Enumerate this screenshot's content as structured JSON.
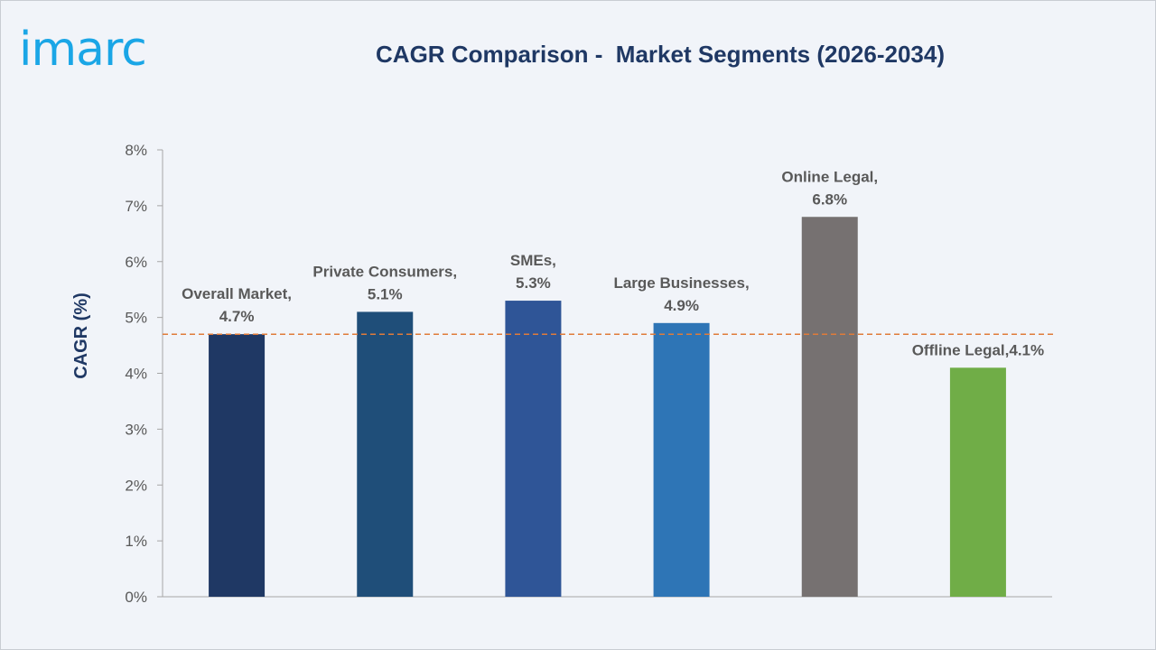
{
  "header": {
    "logo_text": "imarc",
    "title": "CAGR Comparison -  Market Segments (2026-2034)"
  },
  "colors": {
    "background": "#f1f4f9",
    "axis": "#a6a6a6",
    "reference_line": "#e07b39",
    "title": "#1f3864"
  },
  "chart_data": {
    "type": "bar",
    "title": "CAGR Comparison -  Market Segments (2026-2034)",
    "xlabel": "",
    "ylabel": "CAGR (%)",
    "ylim": [
      0,
      8
    ],
    "yticks": [
      0,
      1,
      2,
      3,
      4,
      5,
      6,
      7,
      8
    ],
    "ytick_labels": [
      "0%",
      "1%",
      "2%",
      "3%",
      "4%",
      "5%",
      "6%",
      "7%",
      "8%"
    ],
    "grid": false,
    "legend": "none",
    "reference_line": {
      "value": 4.7,
      "style": "dashed"
    },
    "bars": [
      {
        "category": "Overall Market",
        "value": 4.7,
        "color": "#1f3864",
        "label_lines": [
          "Overall Market,",
          "4.7%"
        ]
      },
      {
        "category": "Private Consumers",
        "value": 5.1,
        "color": "#1f4e79",
        "label_lines": [
          "Private Consumers,",
          "5.1%"
        ]
      },
      {
        "category": "SMEs",
        "value": 5.3,
        "color": "#2f5597",
        "label_lines": [
          "SMEs,",
          "5.3%"
        ]
      },
      {
        "category": "Large Businesses",
        "value": 4.9,
        "color": "#2e75b6",
        "label_lines": [
          "Large Businesses,",
          "4.9%"
        ]
      },
      {
        "category": "Online Legal",
        "value": 6.8,
        "color": "#767171",
        "label_lines": [
          "Online Legal,",
          "6.8%"
        ]
      },
      {
        "category": "Offline Legal",
        "value": 4.1,
        "color": "#70ad47",
        "label_lines": [
          "Offline Legal,4.1%"
        ]
      }
    ]
  }
}
